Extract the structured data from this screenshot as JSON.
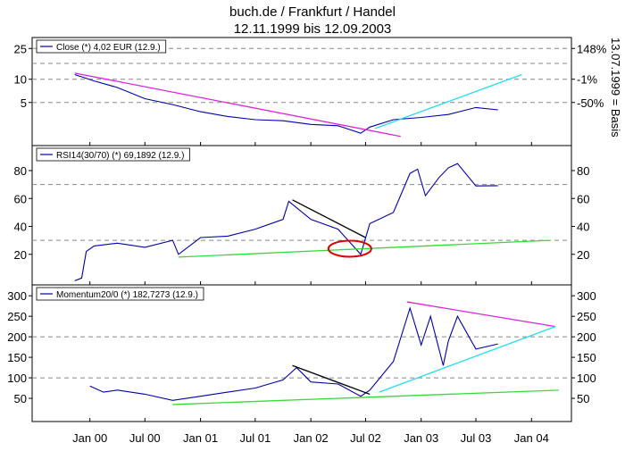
{
  "header": {
    "title": "buch.de / Frankfurt / Handel",
    "subtitle": "12.11.1999 bis 12.09.2003"
  },
  "side_label": "13.07.1999 = Basis",
  "x_axis": {
    "ticks": [
      "Jan 00",
      "Jul 00",
      "Jan 01",
      "Jul 01",
      "Jan 02",
      "Jul 02",
      "Jan 03",
      "Jul 03",
      "Jan 04"
    ]
  },
  "colors": {
    "series": "#0000aa",
    "magenta": "#dd22dd",
    "cyan": "#22ddee",
    "green": "#33dd33",
    "black": "#000000",
    "red": "#dd0000",
    "grid": "#888888"
  },
  "chart_data": [
    {
      "type": "line",
      "legend": "Close (*) 4,02 EUR (12.9.)",
      "y_scale": "log",
      "ylim": [
        1.5,
        32
      ],
      "left_ticks": [
        "25",
        "10",
        "5"
      ],
      "left_tick_values": [
        25,
        10,
        5
      ],
      "right_ticks": [
        "148%",
        "-1%",
        "-50%"
      ],
      "right_tick_values": [
        25,
        10,
        5
      ],
      "grid_lines": [
        25,
        16,
        10,
        5
      ],
      "series": [
        {
          "x": [
            "1999-11-12",
            "2000-01-15",
            "2000-04-01",
            "2000-07-01",
            "2000-10-01",
            "2001-01-01",
            "2001-04-01",
            "2001-07-01",
            "2001-10-01",
            "2002-01-01",
            "2002-04-01",
            "2002-06-15",
            "2002-07-15",
            "2002-10-01",
            "2003-01-01",
            "2003-04-01",
            "2003-07-01",
            "2003-09-12"
          ],
          "y": [
            11.5,
            9.5,
            7.8,
            5.6,
            4.7,
            3.8,
            3.3,
            3.0,
            2.9,
            2.6,
            2.5,
            2.0,
            2.4,
            3.0,
            3.2,
            3.5,
            4.3,
            4.02
          ]
        }
      ],
      "trendlines": [
        {
          "color": "magenta",
          "x": [
            "1999-11-12",
            "2002-10-25"
          ],
          "y": [
            12,
            1.82
          ]
        },
        {
          "color": "cyan",
          "x": [
            "2002-08-01",
            "2003-11-30"
          ],
          "y": [
            2.3,
            11.5
          ]
        }
      ]
    },
    {
      "type": "line",
      "legend": "RSI14(30/70) (*) 69,1892 (12.9.)",
      "ylim": [
        0,
        96
      ],
      "left_ticks": [
        "80",
        "60",
        "40",
        "20"
      ],
      "left_tick_values": [
        80,
        60,
        40,
        20
      ],
      "right_ticks": [
        "80",
        "60",
        "40",
        "20"
      ],
      "right_tick_values": [
        80,
        60,
        40,
        20
      ],
      "grid_lines": [
        70,
        30
      ],
      "series": [
        {
          "x": [
            "1999-11-12",
            "1999-12-05",
            "1999-12-20",
            "2000-01-15",
            "2000-04-01",
            "2000-07-01",
            "2000-10-01",
            "2000-10-20",
            "2001-01-01",
            "2001-04-01",
            "2001-07-01",
            "2001-10-01",
            "2001-10-20",
            "2002-01-01",
            "2002-04-01",
            "2002-06-15",
            "2002-07-15",
            "2002-10-01",
            "2002-11-25",
            "2002-12-20",
            "2003-01-15",
            "2003-03-01",
            "2003-04-01",
            "2003-05-01",
            "2003-07-01",
            "2003-09-12"
          ],
          "y": [
            1,
            3,
            22,
            26,
            28,
            25,
            30,
            20,
            32,
            33,
            38,
            45,
            58,
            45,
            38,
            20,
            42,
            50,
            78,
            81,
            62,
            75,
            82,
            85,
            69,
            69.19
          ]
        }
      ],
      "trendlines": [
        {
          "color": "black",
          "x": [
            "2001-11-01",
            "2002-07-01"
          ],
          "y": [
            59,
            32
          ]
        },
        {
          "color": "green",
          "x": [
            "2000-10-20",
            "2004-02-29"
          ],
          "y": [
            18,
            30
          ]
        }
      ],
      "annotations": [
        {
          "shape": "ellipse",
          "color": "red",
          "x": "2002-05-10",
          "y": 24
        }
      ]
    },
    {
      "type": "line",
      "legend": "Momentum20/0 (*) 182,7273 (12.9.)",
      "ylim": [
        0,
        320
      ],
      "left_ticks": [
        "300",
        "250",
        "200",
        "150",
        "100",
        "50"
      ],
      "left_tick_values": [
        300,
        250,
        200,
        150,
        100,
        50
      ],
      "right_ticks": [
        "300",
        "250",
        "200",
        "150",
        "100",
        "50"
      ],
      "right_tick_values": [
        300,
        250,
        200,
        150,
        100,
        50
      ],
      "grid_lines": [
        200,
        100
      ],
      "series": [
        {
          "x": [
            "2000-01-01",
            "2000-02-15",
            "2000-04-01",
            "2000-07-01",
            "2000-10-01",
            "2001-01-01",
            "2001-04-01",
            "2001-07-01",
            "2001-10-01",
            "2001-11-15",
            "2002-01-01",
            "2002-04-01",
            "2002-06-15",
            "2002-07-15",
            "2002-10-01",
            "2002-11-25",
            "2003-01-01",
            "2003-02-01",
            "2003-03-15",
            "2003-04-01",
            "2003-05-01",
            "2003-07-01",
            "2003-09-12"
          ],
          "y": [
            80,
            65,
            70,
            60,
            45,
            55,
            65,
            75,
            95,
            125,
            90,
            85,
            55,
            70,
            140,
            270,
            180,
            250,
            130,
            190,
            250,
            170,
            182.73
          ]
        }
      ],
      "trendlines": [
        {
          "color": "black",
          "x": [
            "2001-11-01",
            "2002-07-15"
          ],
          "y": [
            130,
            60
          ]
        },
        {
          "color": "magenta",
          "x": [
            "2002-11-15",
            "2004-03-20"
          ],
          "y": [
            285,
            225
          ]
        },
        {
          "color": "cyan",
          "x": [
            "2002-08-15",
            "2004-03-20"
          ],
          "y": [
            65,
            225
          ]
        },
        {
          "color": "green",
          "x": [
            "2000-10-01",
            "2004-03-31"
          ],
          "y": [
            35,
            70
          ]
        }
      ]
    }
  ]
}
